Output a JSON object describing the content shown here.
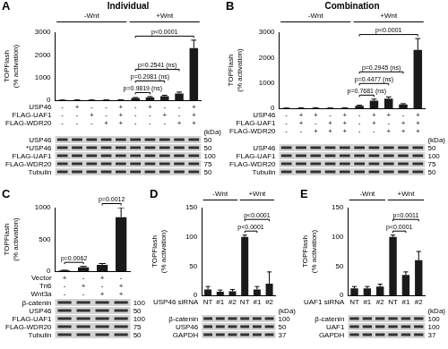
{
  "chart_data": [
    {
      "type": "bar",
      "panel": "A",
      "title": "Individual",
      "y_label": [
        "TOPFlash",
        "(% activation)"
      ],
      "categories": [
        null,
        null,
        null,
        null,
        null,
        null,
        null,
        null,
        null,
        null
      ],
      "values": [
        5,
        8,
        6,
        10,
        12,
        100,
        130,
        180,
        300,
        2300
      ],
      "errors": [
        3,
        4,
        3,
        5,
        6,
        20,
        30,
        40,
        60,
        350
      ],
      "color": "#1a1a1a",
      "ylim": [
        0,
        3000
      ],
      "yticks": [
        0,
        1000,
        2000,
        3000
      ],
      "tick_labels": "y",
      "grid": false,
      "groups": [
        {
          "label": "-Wnt",
          "start": 0,
          "end": 4
        },
        {
          "label": "+Wnt",
          "start": 5,
          "end": 9
        }
      ],
      "comparisons": [
        {
          "text": "p=0.9819 (ns)",
          "from": 5,
          "to": 6
        },
        {
          "text": "p=0.2081 (ns)",
          "from": 5,
          "to": 7
        },
        {
          "text": "p=0.2541 (ns)",
          "from": 5,
          "to": 8
        },
        {
          "text": "p<0.0001",
          "from": 5,
          "to": 9
        }
      ],
      "conditions": [
        {
          "name": "USP46",
          "signs": [
            "-",
            "+",
            "-",
            "-",
            "+",
            "-",
            "+",
            "-",
            "-",
            "+"
          ]
        },
        {
          "name": "FLAG-UAF1",
          "signs": [
            "-",
            "-",
            "+",
            "-",
            "+",
            "-",
            "-",
            "+",
            "-",
            "+"
          ]
        },
        {
          "name": "FLAG-WDR20",
          "signs": [
            "-",
            "-",
            "-",
            "+",
            "+",
            "-",
            "-",
            "-",
            "+",
            "+"
          ]
        }
      ],
      "blot": {
        "unit": "(kDa)",
        "rows": [
          {
            "name": "USP46",
            "kda": 50
          },
          {
            "name": "*USP46",
            "kda": 50
          },
          {
            "name": "FLAG-UAF1",
            "kda": 100
          },
          {
            "name": "FLAG-WDR20",
            "kda": 75
          },
          {
            "name": "Tubulin",
            "kda": 50
          }
        ]
      }
    },
    {
      "type": "bar",
      "panel": "B",
      "title": "Combination",
      "y_label": [
        "TOPFlash",
        "(% activation)"
      ],
      "categories": [
        null,
        null,
        null,
        null,
        null,
        null,
        null,
        null,
        null,
        null
      ],
      "values": [
        5,
        10,
        12,
        8,
        12,
        100,
        300,
        380,
        150,
        2300
      ],
      "errors": [
        3,
        5,
        5,
        4,
        6,
        20,
        60,
        70,
        30,
        450
      ],
      "color": "#1a1a1a",
      "ylim": [
        0,
        3000
      ],
      "yticks": [
        0,
        1000,
        2000,
        3000
      ],
      "tick_labels": "y",
      "grid": false,
      "groups": [
        {
          "label": "-Wnt",
          "start": 0,
          "end": 4
        },
        {
          "label": "+Wnt",
          "start": 5,
          "end": 9
        }
      ],
      "comparisons": [
        {
          "text": "p=0.7681 (ns)",
          "from": 5,
          "to": 6
        },
        {
          "text": "p=0.4477 (ns)",
          "from": 5,
          "to": 7
        },
        {
          "text": "p=0.2945 (ns)",
          "from": 5,
          "to": 8
        },
        {
          "text": "p<0.0001",
          "from": 5,
          "to": 9
        }
      ],
      "conditions": [
        {
          "name": "USP46",
          "signs": [
            "-",
            "+",
            "+",
            "-",
            "+",
            "-",
            "+",
            "+",
            "-",
            "+"
          ]
        },
        {
          "name": "FLAG-UAF1",
          "signs": [
            "-",
            "+",
            "-",
            "+",
            "+",
            "-",
            "+",
            "-",
            "+",
            "+"
          ]
        },
        {
          "name": "FLAG-WDR20",
          "signs": [
            "-",
            "-",
            "+",
            "+",
            "+",
            "-",
            "-",
            "+",
            "+",
            "+"
          ]
        }
      ],
      "blot": {
        "unit": "(kDa)",
        "rows": [
          {
            "name": "USP46",
            "kda": 50
          },
          {
            "name": "FLAG-UAF1",
            "kda": 100
          },
          {
            "name": "FLAG-WDR20",
            "kda": 75
          },
          {
            "name": "Tubulin",
            "kda": 50
          }
        ]
      }
    },
    {
      "type": "bar",
      "panel": "C",
      "y_label": [
        "TOPFlash",
        "(% activation)"
      ],
      "categories": [
        null,
        null,
        null,
        null
      ],
      "values": [
        10,
        60,
        100,
        850
      ],
      "errors": [
        5,
        15,
        20,
        150
      ],
      "color": "#1a1a1a",
      "ylim": [
        0,
        1000
      ],
      "yticks": [
        0,
        500,
        1000
      ],
      "tick_labels": "y",
      "grid": false,
      "comparisons": [
        {
          "text": "p=0.0062",
          "from": 0,
          "to": 1
        },
        {
          "text": "p=0.0012",
          "from": 2,
          "to": 3
        }
      ],
      "conditions": [
        {
          "name": "Vector",
          "signs": [
            "+",
            "-",
            "+",
            "-"
          ]
        },
        {
          "name": "Tri6",
          "signs": [
            "-",
            "+",
            "-",
            "+"
          ]
        },
        {
          "name": "Wnt3a",
          "signs": [
            "-",
            "-",
            "+",
            "+"
          ]
        }
      ],
      "blot": {
        "rows": [
          {
            "name": "β-catenin",
            "kda": 100
          },
          {
            "name": "USP46",
            "kda": 50
          },
          {
            "name": "FLAG-UAF1",
            "kda": 100
          },
          {
            "name": "FLAG-WDR20",
            "kda": 75
          },
          {
            "name": "Tubulin",
            "kda": 50
          }
        ]
      }
    },
    {
      "type": "bar",
      "panel": "D",
      "y_label": [
        "TOPFlash",
        "(% activation)"
      ],
      "categories": [
        null,
        null,
        null,
        null,
        null,
        null
      ],
      "values": [
        10,
        6,
        7,
        100,
        10,
        20
      ],
      "errors": [
        5,
        3,
        3,
        3,
        5,
        20
      ],
      "color": "#1a1a1a",
      "ylim": [
        0,
        150
      ],
      "yticks": [
        0,
        50,
        100,
        150
      ],
      "tick_labels": "y",
      "grid": false,
      "groups": [
        {
          "label": "-Wnt",
          "start": 0,
          "end": 2
        },
        {
          "label": "+Wnt",
          "start": 3,
          "end": 5
        }
      ],
      "comparisons": [
        {
          "text": "p<0.0001",
          "from": 3,
          "to": 4
        },
        {
          "text": "p<0.0001",
          "from": 3,
          "to": 5
        }
      ],
      "conditions": [
        {
          "name": "USP46 siRNA",
          "signs": [
            "NT",
            "#1",
            "#2",
            "NT",
            "#1",
            "#2"
          ]
        }
      ],
      "blot": {
        "unit": "(kDa)",
        "rows": [
          {
            "name": "β-catenin",
            "kda": 100
          },
          {
            "name": "USP46",
            "kda": 50
          },
          {
            "name": "GAPDH",
            "kda": 37
          }
        ]
      }
    },
    {
      "type": "bar",
      "panel": "E",
      "y_label": [
        "TOPFlash",
        "(% activation)"
      ],
      "categories": [
        null,
        null,
        null,
        null,
        null,
        null
      ],
      "values": [
        12,
        12,
        15,
        100,
        35,
        60
      ],
      "errors": [
        3,
        3,
        4,
        3,
        5,
        15
      ],
      "color": "#1a1a1a",
      "ylim": [
        0,
        150
      ],
      "yticks": [
        0,
        50,
        100,
        150
      ],
      "tick_labels": "y",
      "grid": false,
      "groups": [
        {
          "label": "-Wnt",
          "start": 0,
          "end": 2
        },
        {
          "label": "+Wnt",
          "start": 3,
          "end": 5
        }
      ],
      "comparisons": [
        {
          "text": "p<0.0001",
          "from": 3,
          "to": 4
        },
        {
          "text": "p=0.0011",
          "from": 3,
          "to": 5
        }
      ],
      "conditions": [
        {
          "name": "UAF1 siRNA",
          "signs": [
            "NT",
            "#1",
            "#2",
            "NT",
            "#1",
            "#2"
          ]
        }
      ],
      "blot": {
        "unit": "(kDa)",
        "rows": [
          {
            "name": "β-catenin",
            "kda": 100
          },
          {
            "name": "UAF1",
            "kda": 100
          },
          {
            "name": "GAPDH",
            "kda": 37
          }
        ]
      }
    }
  ]
}
